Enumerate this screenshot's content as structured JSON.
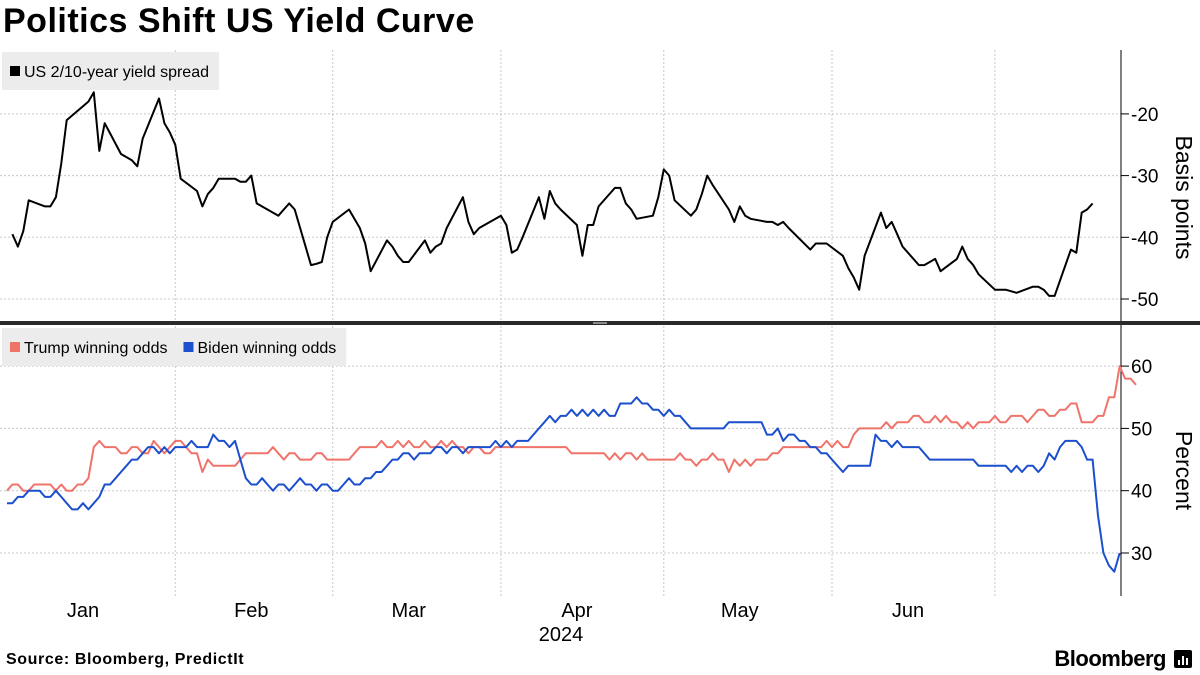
{
  "title": "Politics Shift US Yield Curve",
  "source": "Source: Bloomberg, PredictIt",
  "brand": "Bloomberg",
  "brand_icon": "bloomberg-bars-icon",
  "colors": {
    "spread": "#000000",
    "trump": "#f0736a",
    "biden": "#1c4fce",
    "grid": "#c8c8c8",
    "legend_bg": "#ececec"
  },
  "chart_data": [
    {
      "type": "line",
      "ylabel": "Basis points",
      "ylim": [
        -53,
        -11
      ],
      "yticks": [
        -50,
        -40,
        -30,
        -20
      ],
      "ytick_labels": [
        "-50",
        "-40",
        "-30",
        "-20"
      ],
      "y_axis_side": "right",
      "grid": true,
      "legend_placement": "top-left",
      "series": [
        {
          "name": "US 2/10-year yield spread",
          "color": "#000000",
          "points": [
            [
              "2024-01-02",
              -39.5
            ],
            [
              "2024-01-03",
              -41.5
            ],
            [
              "2024-01-04",
              -39
            ],
            [
              "2024-01-05",
              -34
            ],
            [
              "2024-01-08",
              -35
            ],
            [
              "2024-01-09",
              -35
            ],
            [
              "2024-01-10",
              -33.5
            ],
            [
              "2024-01-11",
              -28
            ],
            [
              "2024-01-12",
              -21
            ],
            [
              "2024-01-16",
              -18
            ],
            [
              "2024-01-17",
              -16.5
            ],
            [
              "2024-01-18",
              -26
            ],
            [
              "2024-01-19",
              -21.5
            ],
            [
              "2024-01-22",
              -26.5
            ],
            [
              "2024-01-23",
              -27
            ],
            [
              "2024-01-24",
              -27.5
            ],
            [
              "2024-01-25",
              -28.5
            ],
            [
              "2024-01-26",
              -24
            ],
            [
              "2024-01-29",
              -17.5
            ],
            [
              "2024-01-30",
              -21.5
            ],
            [
              "2024-01-31",
              -23
            ],
            [
              "2024-02-01",
              -25
            ],
            [
              "2024-02-02",
              -30.5
            ],
            [
              "2024-02-05",
              -32.5
            ],
            [
              "2024-02-06",
              -35
            ],
            [
              "2024-02-07",
              -33
            ],
            [
              "2024-02-08",
              -32
            ],
            [
              "2024-02-09",
              -30.5
            ],
            [
              "2024-02-12",
              -30.5
            ],
            [
              "2024-02-13",
              -31
            ],
            [
              "2024-02-14",
              -31
            ],
            [
              "2024-02-15",
              -30
            ],
            [
              "2024-02-16",
              -34.5
            ],
            [
              "2024-02-20",
              -36.5
            ],
            [
              "2024-02-21",
              -35.5
            ],
            [
              "2024-02-22",
              -34.5
            ],
            [
              "2024-02-23",
              -35.5
            ],
            [
              "2024-02-26",
              -44.5
            ],
            [
              "2024-02-27",
              -44.3
            ],
            [
              "2024-02-28",
              -44
            ],
            [
              "2024-02-29",
              -40
            ],
            [
              "2024-03-01",
              -37.5
            ],
            [
              "2024-03-04",
              -35.5
            ],
            [
              "2024-03-05",
              -37
            ],
            [
              "2024-03-06",
              -38.5
            ],
            [
              "2024-03-07",
              -41
            ],
            [
              "2024-03-08",
              -45.5
            ],
            [
              "2024-03-11",
              -40.5
            ],
            [
              "2024-03-12",
              -41.5
            ],
            [
              "2024-03-13",
              -43
            ],
            [
              "2024-03-14",
              -44
            ],
            [
              "2024-03-15",
              -44
            ],
            [
              "2024-03-18",
              -40.5
            ],
            [
              "2024-03-19",
              -42.5
            ],
            [
              "2024-03-20",
              -41.5
            ],
            [
              "2024-03-21",
              -41
            ],
            [
              "2024-03-22",
              -38.5
            ],
            [
              "2024-03-25",
              -33.5
            ],
            [
              "2024-03-26",
              -37.5
            ],
            [
              "2024-03-27",
              -39.5
            ],
            [
              "2024-03-28",
              -38.5
            ],
            [
              "2024-04-01",
              -36.5
            ],
            [
              "2024-04-02",
              -38
            ],
            [
              "2024-04-03",
              -42.5
            ],
            [
              "2024-04-04",
              -42
            ],
            [
              "2024-04-05",
              -40
            ],
            [
              "2024-04-08",
              -33.5
            ],
            [
              "2024-04-09",
              -37
            ],
            [
              "2024-04-10",
              -32.5
            ],
            [
              "2024-04-11",
              -34.5
            ],
            [
              "2024-04-12",
              -35.5
            ],
            [
              "2024-04-15",
              -38
            ],
            [
              "2024-04-16",
              -43
            ],
            [
              "2024-04-17",
              -38
            ],
            [
              "2024-04-18",
              -38
            ],
            [
              "2024-04-19",
              -35
            ],
            [
              "2024-04-22",
              -32
            ],
            [
              "2024-04-23",
              -32
            ],
            [
              "2024-04-24",
              -34.5
            ],
            [
              "2024-04-25",
              -35.5
            ],
            [
              "2024-04-26",
              -37
            ],
            [
              "2024-04-29",
              -36.5
            ],
            [
              "2024-04-30",
              -33.5
            ],
            [
              "2024-05-01",
              -29
            ],
            [
              "2024-05-02",
              -30
            ],
            [
              "2024-05-03",
              -34
            ],
            [
              "2024-05-06",
              -36.5
            ],
            [
              "2024-05-07",
              -35.5
            ],
            [
              "2024-05-08",
              -33
            ],
            [
              "2024-05-09",
              -30
            ],
            [
              "2024-05-10",
              -31.5
            ],
            [
              "2024-05-13",
              -35.5
            ],
            [
              "2024-05-14",
              -37.5
            ],
            [
              "2024-05-15",
              -35
            ],
            [
              "2024-05-16",
              -36.5
            ],
            [
              "2024-05-17",
              -37
            ],
            [
              "2024-05-20",
              -37.5
            ],
            [
              "2024-05-21",
              -37.5
            ],
            [
              "2024-05-22",
              -38
            ],
            [
              "2024-05-23",
              -37.5
            ],
            [
              "2024-05-24",
              -38.5
            ],
            [
              "2024-05-28",
              -42
            ],
            [
              "2024-05-29",
              -41
            ],
            [
              "2024-05-30",
              -41
            ],
            [
              "2024-05-31",
              -41
            ],
            [
              "2024-06-03",
              -43
            ],
            [
              "2024-06-04",
              -45
            ],
            [
              "2024-06-05",
              -46.5
            ],
            [
              "2024-06-06",
              -48.5
            ],
            [
              "2024-06-07",
              -43
            ],
            [
              "2024-06-10",
              -36
            ],
            [
              "2024-06-11",
              -38.5
            ],
            [
              "2024-06-12",
              -37.5
            ],
            [
              "2024-06-13",
              -39.5
            ],
            [
              "2024-06-14",
              -41.5
            ],
            [
              "2024-06-17",
              -44.5
            ],
            [
              "2024-06-18",
              -44.5
            ],
            [
              "2024-06-20",
              -43.5
            ],
            [
              "2024-06-21",
              -45.5
            ],
            [
              "2024-06-24",
              -43.5
            ],
            [
              "2024-06-25",
              -41.5
            ],
            [
              "2024-06-26",
              -43.5
            ],
            [
              "2024-06-27",
              -44.5
            ],
            [
              "2024-06-28",
              -46
            ],
            [
              "2024-07-01",
              -48.5
            ],
            [
              "2024-07-02",
              -48.5
            ],
            [
              "2024-07-03",
              -48.5
            ],
            [
              "2024-07-05",
              -49
            ],
            [
              "2024-07-08",
              -48
            ],
            [
              "2024-07-09",
              -48
            ],
            [
              "2024-07-10",
              -48.5
            ],
            [
              "2024-07-11",
              -49.5
            ],
            [
              "2024-07-12",
              -49.5
            ],
            [
              "2024-07-15",
              -42
            ],
            [
              "2024-07-16",
              -42.5
            ],
            [
              "2024-07-17",
              -36
            ],
            [
              "2024-07-18",
              -35.5
            ],
            [
              "2024-07-19",
              -34.5
            ]
          ]
        }
      ]
    },
    {
      "type": "line",
      "ylabel": "Percent",
      "ylim": [
        25,
        65
      ],
      "yticks": [
        30,
        40,
        50,
        60
      ],
      "ytick_labels": [
        "30",
        "40",
        "50",
        "60"
      ],
      "y_axis_side": "right",
      "grid": true,
      "legend_placement": "top-left",
      "xticks": [
        "2024-01-15",
        "2024-02-15",
        "2024-03-15",
        "2024-04-15",
        "2024-05-15",
        "2024-06-15"
      ],
      "xtick_labels": [
        "Jan",
        "Feb",
        "Mar",
        "Apr",
        "May",
        "Jun"
      ],
      "xlabel": "2024",
      "series": [
        {
          "name": "Trump winning odds",
          "color": "#f0736a",
          "step_days": 1,
          "start": "2024-01-01",
          "values": [
            40,
            41,
            41,
            40,
            40,
            41,
            41,
            41,
            41,
            40,
            41,
            40,
            40,
            41,
            41,
            42,
            47,
            48,
            47,
            47,
            47,
            46,
            46,
            47,
            47,
            46,
            46,
            48,
            47,
            46,
            47,
            48,
            48,
            47,
            46,
            46,
            43,
            45,
            44,
            44,
            44,
            44,
            44,
            45,
            46,
            46,
            46,
            46,
            46,
            47,
            46,
            45,
            46,
            46,
            45,
            45,
            45,
            46,
            46,
            45,
            45,
            45,
            45,
            45,
            46,
            47,
            47,
            47,
            47,
            48,
            47,
            47,
            48,
            47,
            48,
            47,
            47,
            48,
            47,
            47,
            48,
            47,
            48,
            47,
            47,
            46,
            47,
            47,
            46,
            46,
            47,
            47,
            47,
            47,
            47,
            47,
            47,
            47,
            47,
            47,
            47,
            47,
            47,
            47,
            46,
            46,
            46,
            46,
            46,
            46,
            46,
            45,
            46,
            45,
            46,
            46,
            45,
            46,
            45,
            45,
            45,
            45,
            45,
            45,
            46,
            45,
            45,
            44,
            45,
            45,
            46,
            45,
            45,
            43,
            45,
            44,
            45,
            44,
            45,
            45,
            45,
            46,
            46,
            47,
            47,
            47,
            47,
            47,
            47,
            47,
            47,
            48,
            47,
            48,
            47,
            47,
            49,
            50,
            50,
            50,
            50,
            50,
            51,
            50,
            51,
            51,
            51,
            52,
            52,
            51,
            51,
            52,
            51,
            52,
            51,
            51,
            50,
            51,
            50,
            51,
            51,
            51,
            52,
            51,
            51,
            52,
            52,
            52,
            51,
            52,
            53,
            53,
            52,
            52,
            53,
            53,
            54,
            54,
            51,
            51,
            51,
            52,
            52,
            55,
            55,
            60,
            58,
            58,
            57
          ]
        },
        {
          "name": "Biden winning odds",
          "color": "#1c4fce",
          "step_days": 1,
          "start": "2024-01-01",
          "values": [
            38,
            38,
            39,
            39,
            40,
            40,
            40,
            39,
            39,
            40,
            39,
            38,
            37,
            37,
            38,
            37,
            38,
            39,
            41,
            41,
            42,
            43,
            44,
            45,
            45,
            46,
            47,
            47,
            46,
            47,
            46,
            47,
            47,
            47,
            48,
            47,
            47,
            47,
            49,
            48,
            48,
            47,
            48,
            45,
            42,
            41,
            41,
            42,
            41,
            40,
            41,
            41,
            40,
            41,
            42,
            41,
            41,
            40,
            41,
            41,
            40,
            40,
            41,
            42,
            41,
            41,
            42,
            42,
            43,
            43,
            44,
            45,
            45,
            46,
            46,
            45,
            46,
            46,
            46,
            47,
            47,
            46,
            47,
            47,
            46,
            47,
            47,
            47,
            47,
            47,
            48,
            47,
            48,
            47,
            48,
            48,
            48,
            49,
            50,
            51,
            52,
            51,
            52,
            52,
            53,
            52,
            53,
            52,
            53,
            52,
            53,
            52,
            52,
            54,
            54,
            54,
            55,
            54,
            54,
            53,
            53,
            52,
            53,
            52,
            52,
            51,
            50,
            50,
            50,
            50,
            50,
            50,
            50,
            51,
            51,
            51,
            51,
            51,
            51,
            51,
            49,
            49,
            50,
            48,
            49,
            49,
            48,
            48,
            47,
            47,
            46,
            46,
            45,
            44,
            43,
            44,
            44,
            44,
            44,
            44,
            49,
            48,
            48,
            47,
            48,
            47,
            47,
            47,
            47,
            46,
            45,
            45,
            45,
            45,
            45,
            45,
            45,
            45,
            45,
            44,
            44,
            44,
            44,
            44,
            44,
            43,
            44,
            43,
            44,
            44,
            43,
            44,
            46,
            45,
            47,
            48,
            48,
            48,
            47,
            45,
            45,
            36,
            30,
            28,
            27,
            30
          ]
        }
      ]
    }
  ]
}
